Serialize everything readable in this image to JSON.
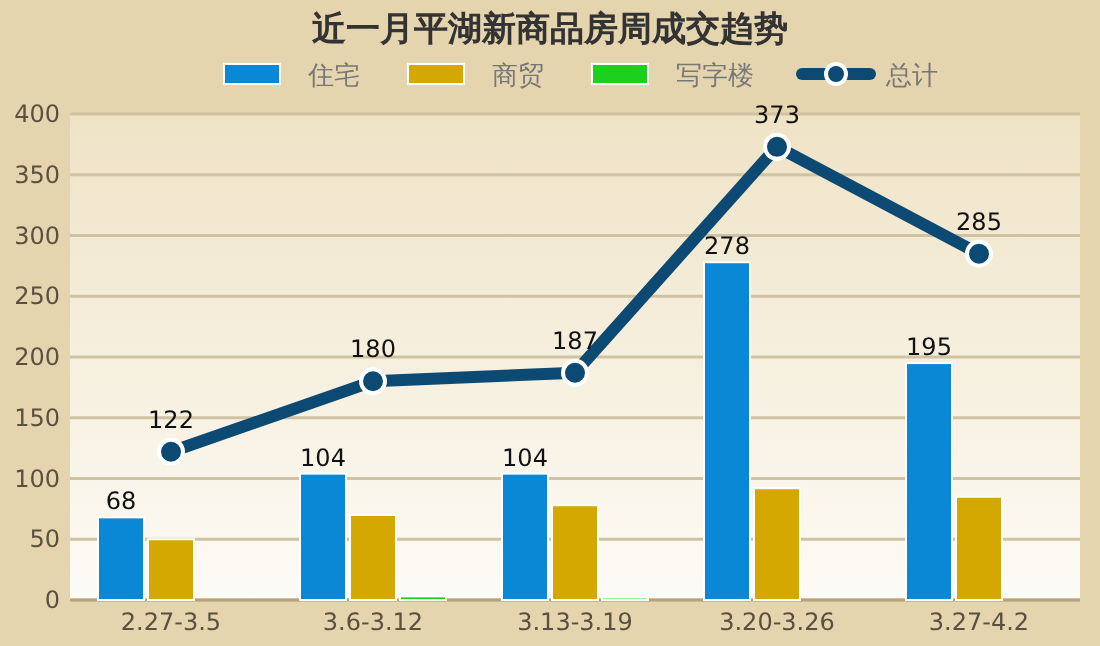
{
  "chart_data": {
    "type": "bar",
    "title": "近一月平湖新商品房周成交趋势",
    "categories": [
      "2.27-3.5",
      "3.6-3.12",
      "3.13-3.19",
      "3.20-3.26",
      "3.27-4.2"
    ],
    "series": [
      {
        "name": "住宅",
        "color": "#0a88d6",
        "values": [
          68,
          104,
          104,
          278,
          195
        ],
        "value_labels": [
          "68",
          "104",
          "104",
          "278",
          "195"
        ]
      },
      {
        "name": "商贸",
        "color": "#d4a800",
        "values": [
          50,
          70,
          78,
          92,
          85
        ]
      },
      {
        "name": "写字楼",
        "color": "#1ed01e",
        "values": [
          0,
          3,
          2,
          0,
          0
        ]
      },
      {
        "name": "总计",
        "type": "line",
        "color": "#0c4a73",
        "values": [
          122,
          180,
          187,
          373,
          285
        ],
        "value_labels": [
          "122",
          "180",
          "187",
          "373",
          "285"
        ],
        "marker": "circle"
      }
    ],
    "ylim": [
      0,
      400
    ],
    "yticks": [
      0,
      50,
      100,
      150,
      200,
      250,
      300,
      350,
      400
    ],
    "grid": "y",
    "legend": "top"
  }
}
